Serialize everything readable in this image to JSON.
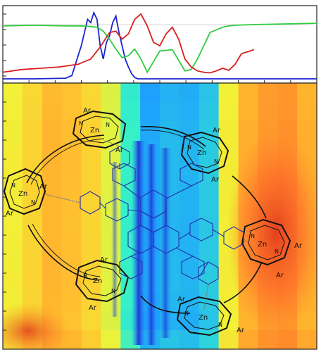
{
  "chart_data": [
    {
      "type": "line",
      "title": "",
      "xlabel": "",
      "ylabel": "",
      "xlim": [
        0,
        100
      ],
      "ylim": [
        0,
        1
      ],
      "grid": false,
      "legend": "none",
      "series": [
        {
          "name": "blue",
          "color": "#1a24d0",
          "x": [
            0,
            10,
            20,
            22,
            24,
            25,
            26,
            27,
            28,
            29,
            30,
            31,
            32,
            33,
            34,
            35,
            36,
            37,
            38,
            39,
            40,
            41,
            42,
            43,
            44,
            100
          ],
          "y": [
            0.0,
            0.0,
            0.01,
            0.05,
            0.35,
            0.5,
            0.7,
            0.9,
            0.85,
            1.0,
            0.9,
            0.5,
            0.3,
            0.55,
            0.65,
            0.85,
            0.95,
            0.7,
            0.5,
            0.3,
            0.18,
            0.08,
            0.02,
            0.0,
            0.0,
            0.0
          ]
        },
        {
          "name": "green",
          "color": "#2ecc40",
          "x": [
            0,
            10,
            20,
            25,
            28,
            30,
            32,
            34,
            36,
            38,
            40,
            42,
            44,
            46,
            50,
            54,
            58,
            60,
            62,
            66,
            70,
            72,
            74,
            80,
            90,
            100
          ],
          "y": [
            0.8,
            0.81,
            0.8,
            0.8,
            0.79,
            0.78,
            0.72,
            0.6,
            0.45,
            0.32,
            0.35,
            0.45,
            0.3,
            0.1,
            0.42,
            0.44,
            0.12,
            0.14,
            0.3,
            0.7,
            0.78,
            0.8,
            0.81,
            0.82,
            0.83,
            0.84
          ]
        },
        {
          "name": "red",
          "color": "#d81e1e",
          "x": [
            0,
            6,
            12,
            18,
            24,
            28,
            31,
            34,
            36,
            38,
            40,
            42,
            44,
            46,
            48,
            50,
            52,
            54,
            56,
            58,
            60,
            62,
            64,
            66,
            68,
            70,
            72,
            74,
            76,
            80
          ],
          "y": [
            0.1,
            0.14,
            0.16,
            0.18,
            0.22,
            0.3,
            0.48,
            0.7,
            0.72,
            0.6,
            0.68,
            0.9,
            0.98,
            0.8,
            0.55,
            0.5,
            0.68,
            0.78,
            0.6,
            0.3,
            0.18,
            0.12,
            0.1,
            0.09,
            0.12,
            0.16,
            0.13,
            0.22,
            0.38,
            0.44
          ]
        }
      ]
    },
    {
      "type": "heatmap",
      "title": "",
      "xlabel": "",
      "ylabel": "",
      "grid": false,
      "legend": "none",
      "colormap": [
        "#1e2bd6",
        "#1ea0ff",
        "#35f0c8",
        "#a9f060",
        "#f2f237",
        "#ffbf2f",
        "#ff8a2a",
        "#e23b1d"
      ],
      "columns": 16,
      "rows": 14,
      "column_values": [
        0.55,
        0.62,
        0.7,
        0.68,
        0.62,
        0.5,
        0.25,
        0.12,
        0.15,
        0.14,
        0.18,
        0.55,
        0.72,
        0.78,
        0.8,
        0.72
      ],
      "row_values": [
        0.6,
        0.62,
        0.65,
        0.66,
        0.66,
        0.65,
        0.64,
        0.63,
        0.64,
        0.65,
        0.66,
        0.64,
        0.6,
        0.72
      ]
    }
  ],
  "molecule": {
    "zn_label": "Zn",
    "n_label": "N",
    "ar_label": "Ar",
    "porphyrins": [
      {
        "name": "top-left",
        "ar": [
          "Ar",
          "Ar"
        ]
      },
      {
        "name": "top-right",
        "ar": [
          "Ar",
          "Ar"
        ]
      },
      {
        "name": "left",
        "ar": [
          "Ar",
          "Ar"
        ]
      },
      {
        "name": "right",
        "ar": [
          "Ar",
          "Ar"
        ]
      },
      {
        "name": "bottom-left",
        "ar": [
          "Ar",
          "Ar"
        ]
      },
      {
        "name": "bottom-right",
        "ar": [
          "Ar",
          "Ar"
        ]
      }
    ]
  }
}
